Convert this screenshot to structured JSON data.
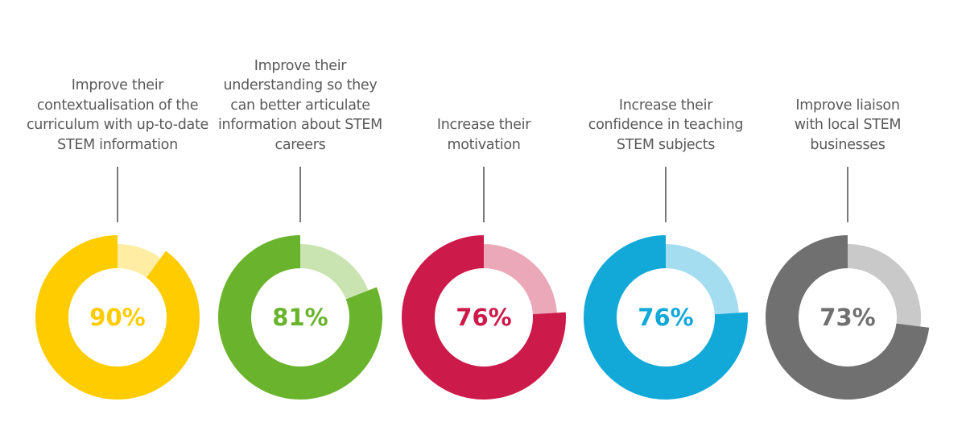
{
  "chart_data": [
    {
      "type": "pie",
      "label": "Improve their contextualisation of the curriculum with up-to-date STEM information",
      "value": 90,
      "value_label": "90%",
      "color": "#FFCC00",
      "remainder_color": "#FFEDA3"
    },
    {
      "type": "pie",
      "label": "Improve their understanding so they can better articulate information about STEM careers",
      "value": 81,
      "value_label": "81%",
      "color": "#6AB42D",
      "remainder_color": "#C9E4B0"
    },
    {
      "type": "pie",
      "label": "Increase their motivation",
      "value": 76,
      "value_label": "76%",
      "color": "#CC1B4A",
      "remainder_color": "#EBA8B9"
    },
    {
      "type": "pie",
      "label": "Increase their confidence in teaching STEM subjects",
      "value": 76,
      "value_label": "76%",
      "color": "#12A9D9",
      "remainder_color": "#A4DDF0"
    },
    {
      "type": "pie",
      "label": "Improve liaison with local STEM businesses",
      "value": 73,
      "value_label": "73%",
      "color": "#707070",
      "remainder_color": "#C9C9C9"
    }
  ]
}
